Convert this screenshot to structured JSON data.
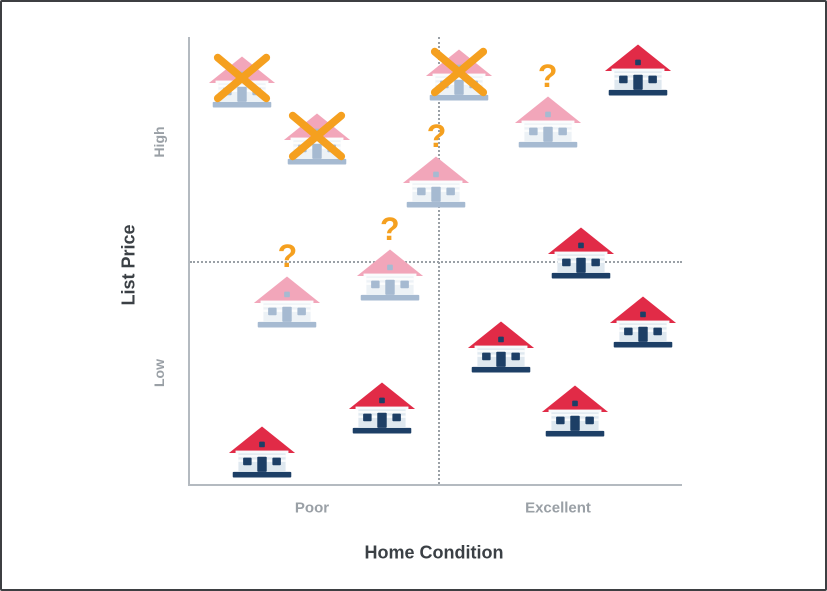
{
  "chart_data": {
    "type": "scatter",
    "title": "",
    "xlabel": "Home Condition",
    "ylabel": "List Price",
    "x_tick_labels": [
      "Poor",
      "Excellent"
    ],
    "y_tick_labels": [
      "High",
      "Low"
    ],
    "grid": "off",
    "quadrant_lines": {
      "vertical_line_x_pct": 50.5,
      "horizontal_line_y_pct": 50.2
    },
    "points": [
      {
        "x_pct": 10.5,
        "y_pct": 10.0,
        "condition": "poor",
        "price": "high",
        "status": "rejected"
      },
      {
        "x_pct": 54.7,
        "y_pct": 8.5,
        "condition": "mid",
        "price": "high",
        "status": "rejected"
      },
      {
        "x_pct": 91.1,
        "y_pct": 7.4,
        "condition": "excellent",
        "price": "high",
        "status": "normal"
      },
      {
        "x_pct": 72.7,
        "y_pct": 19.0,
        "condition": "excellent",
        "price": "high",
        "status": "question"
      },
      {
        "x_pct": 25.9,
        "y_pct": 22.8,
        "condition": "poor",
        "price": "high",
        "status": "rejected"
      },
      {
        "x_pct": 50.1,
        "y_pct": 32.4,
        "condition": "mid",
        "price": "high",
        "status": "question"
      },
      {
        "x_pct": 79.4,
        "y_pct": 48.4,
        "condition": "excellent",
        "price": "mid",
        "status": "normal"
      },
      {
        "x_pct": 40.6,
        "y_pct": 53.3,
        "condition": "mid",
        "price": "mid",
        "status": "question"
      },
      {
        "x_pct": 19.8,
        "y_pct": 59.2,
        "condition": "poor",
        "price": "mid",
        "status": "question"
      },
      {
        "x_pct": 92.1,
        "y_pct": 63.8,
        "condition": "excellent",
        "price": "low",
        "status": "normal"
      },
      {
        "x_pct": 63.2,
        "y_pct": 69.4,
        "condition": "excellent",
        "price": "low",
        "status": "normal"
      },
      {
        "x_pct": 78.2,
        "y_pct": 83.7,
        "condition": "excellent",
        "price": "low",
        "status": "normal"
      },
      {
        "x_pct": 39.0,
        "y_pct": 83.0,
        "condition": "poor",
        "price": "low",
        "status": "normal"
      },
      {
        "x_pct": 14.7,
        "y_pct": 92.9,
        "condition": "poor",
        "price": "low",
        "status": "normal"
      }
    ]
  },
  "marks": {
    "question_glyph": "?",
    "rejected_mark": "X"
  },
  "colors": {
    "mark_orange": "#f5a01f",
    "roof_red": "#e12b47",
    "roof_faded": "#f2a6ba",
    "body_light": "#dfe8ef",
    "body_faded": "#edf2f6",
    "navy": "#1d3f66",
    "navy_faded": "#a6bad1",
    "axis_line": "#b4bac0",
    "dotted_line": "#9aa0a6",
    "text_dark": "#3b4045",
    "text_gray": "#9aa0a6",
    "frame_border": "#3d3f42"
  }
}
